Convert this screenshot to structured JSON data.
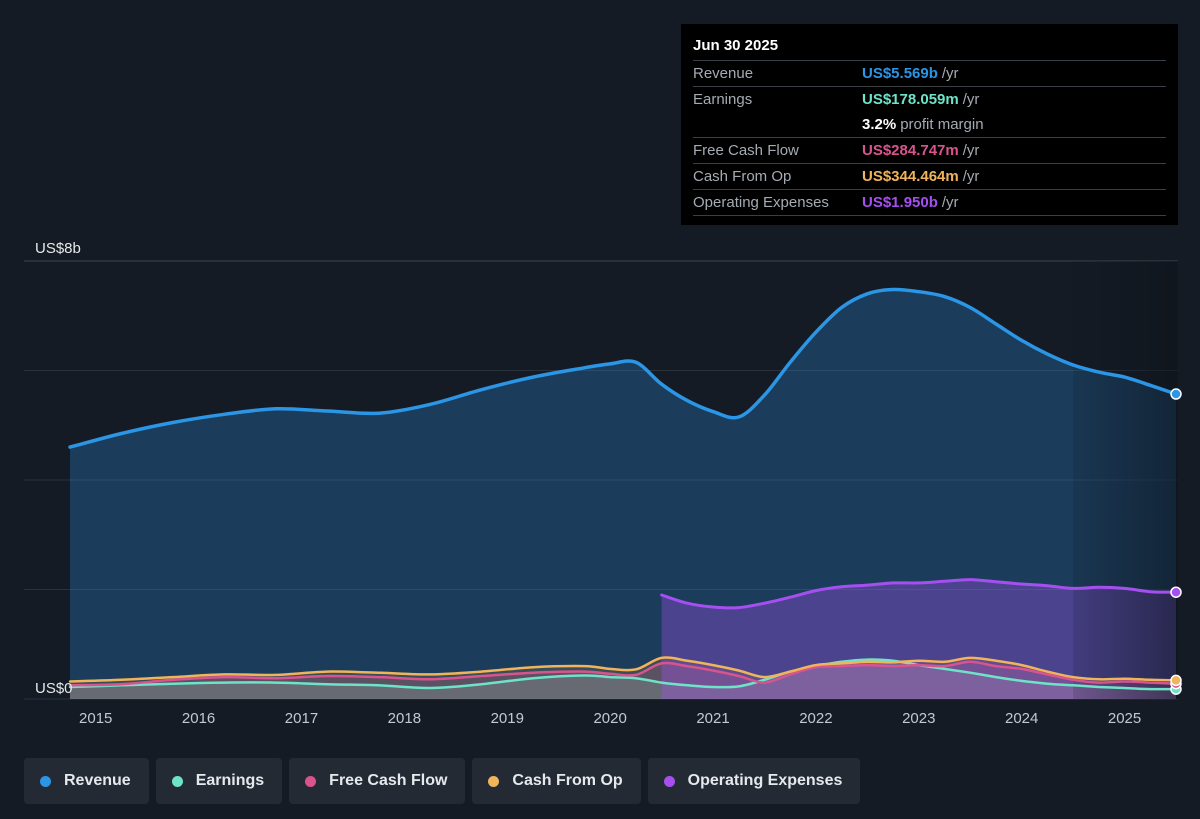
{
  "tooltip": {
    "date": "Jun 30 2025",
    "rows": [
      {
        "label": "Revenue",
        "value": "US$5.569b",
        "unit": "/yr",
        "color": "#2b95e6"
      },
      {
        "label": "Earnings",
        "value": "US$178.059m",
        "unit": "/yr",
        "color": "#6de3c8"
      },
      {
        "label": "",
        "value": "3.2%",
        "unit": "profit margin",
        "color": "#ffffff"
      },
      {
        "label": "Free Cash Flow",
        "value": "US$284.747m",
        "unit": "/yr",
        "color": "#d9548f"
      },
      {
        "label": "Cash From Op",
        "value": "US$344.464m",
        "unit": "/yr",
        "color": "#f0b45a"
      },
      {
        "label": "Operating Expenses",
        "value": "US$1.950b",
        "unit": "/yr",
        "color": "#a64ff0"
      }
    ]
  },
  "legend": [
    {
      "label": "Revenue",
      "color": "#2b95e6"
    },
    {
      "label": "Earnings",
      "color": "#6de3c8"
    },
    {
      "label": "Free Cash Flow",
      "color": "#d9548f"
    },
    {
      "label": "Cash From Op",
      "color": "#f0b45a"
    },
    {
      "label": "Operating Expenses",
      "color": "#a64ff0"
    }
  ],
  "chart_data": {
    "type": "area",
    "y_unit": "US$ billions",
    "ylim": [
      0,
      8
    ],
    "y_tick_labels": [
      {
        "value": 8,
        "label": "US$8b"
      },
      {
        "value": 0,
        "label": "US$0"
      }
    ],
    "gridlines": [
      0,
      2,
      4,
      6,
      8
    ],
    "xlim": [
      2014.5,
      2025.5
    ],
    "x_ticks": [
      2015,
      2016,
      2017,
      2018,
      2019,
      2020,
      2021,
      2022,
      2023,
      2024,
      2025
    ],
    "highlight_from": 2024.5,
    "series": [
      {
        "name": "Revenue",
        "color": "#2b95e6",
        "points": [
          [
            2014.75,
            4.6
          ],
          [
            2015.25,
            4.85
          ],
          [
            2015.75,
            5.05
          ],
          [
            2016.25,
            5.2
          ],
          [
            2016.75,
            5.3
          ],
          [
            2017.25,
            5.26
          ],
          [
            2017.75,
            5.22
          ],
          [
            2018.25,
            5.38
          ],
          [
            2018.75,
            5.65
          ],
          [
            2019.25,
            5.88
          ],
          [
            2019.75,
            6.05
          ],
          [
            2020.0,
            6.12
          ],
          [
            2020.25,
            6.15
          ],
          [
            2020.5,
            5.75
          ],
          [
            2020.75,
            5.45
          ],
          [
            2021.0,
            5.25
          ],
          [
            2021.25,
            5.15
          ],
          [
            2021.5,
            5.55
          ],
          [
            2021.75,
            6.15
          ],
          [
            2022.0,
            6.7
          ],
          [
            2022.25,
            7.15
          ],
          [
            2022.5,
            7.4
          ],
          [
            2022.75,
            7.48
          ],
          [
            2023.0,
            7.44
          ],
          [
            2023.25,
            7.35
          ],
          [
            2023.5,
            7.15
          ],
          [
            2023.75,
            6.85
          ],
          [
            2024.0,
            6.55
          ],
          [
            2024.25,
            6.3
          ],
          [
            2024.5,
            6.1
          ],
          [
            2024.75,
            5.97
          ],
          [
            2025.0,
            5.88
          ],
          [
            2025.25,
            5.73
          ],
          [
            2025.5,
            5.57
          ]
        ]
      },
      {
        "name": "Earnings",
        "color": "#6de3c8",
        "points": [
          [
            2014.75,
            0.22
          ],
          [
            2015.25,
            0.25
          ],
          [
            2015.75,
            0.28
          ],
          [
            2016.25,
            0.3
          ],
          [
            2016.75,
            0.3
          ],
          [
            2017.25,
            0.27
          ],
          [
            2017.75,
            0.25
          ],
          [
            2018.25,
            0.2
          ],
          [
            2018.75,
            0.27
          ],
          [
            2019.25,
            0.38
          ],
          [
            2019.75,
            0.43
          ],
          [
            2020.0,
            0.4
          ],
          [
            2020.25,
            0.38
          ],
          [
            2020.5,
            0.3
          ],
          [
            2020.75,
            0.25
          ],
          [
            2021.0,
            0.22
          ],
          [
            2021.25,
            0.23
          ],
          [
            2021.5,
            0.35
          ],
          [
            2021.75,
            0.5
          ],
          [
            2022.0,
            0.6
          ],
          [
            2022.25,
            0.68
          ],
          [
            2022.5,
            0.72
          ],
          [
            2022.75,
            0.7
          ],
          [
            2023.0,
            0.62
          ],
          [
            2023.25,
            0.55
          ],
          [
            2023.5,
            0.48
          ],
          [
            2023.75,
            0.4
          ],
          [
            2024.0,
            0.33
          ],
          [
            2024.25,
            0.28
          ],
          [
            2024.5,
            0.25
          ],
          [
            2024.75,
            0.22
          ],
          [
            2025.0,
            0.2
          ],
          [
            2025.25,
            0.18
          ],
          [
            2025.5,
            0.18
          ]
        ]
      },
      {
        "name": "Free Cash Flow",
        "color": "#d9548f",
        "points": [
          [
            2014.75,
            0.25
          ],
          [
            2015.25,
            0.27
          ],
          [
            2015.75,
            0.35
          ],
          [
            2016.25,
            0.4
          ],
          [
            2016.75,
            0.38
          ],
          [
            2017.25,
            0.42
          ],
          [
            2017.75,
            0.4
          ],
          [
            2018.25,
            0.36
          ],
          [
            2018.75,
            0.42
          ],
          [
            2019.25,
            0.48
          ],
          [
            2019.75,
            0.5
          ],
          [
            2020.0,
            0.46
          ],
          [
            2020.25,
            0.44
          ],
          [
            2020.5,
            0.65
          ],
          [
            2020.75,
            0.6
          ],
          [
            2021.0,
            0.52
          ],
          [
            2021.25,
            0.42
          ],
          [
            2021.5,
            0.3
          ],
          [
            2021.75,
            0.45
          ],
          [
            2022.0,
            0.58
          ],
          [
            2022.25,
            0.6
          ],
          [
            2022.5,
            0.62
          ],
          [
            2022.75,
            0.6
          ],
          [
            2023.0,
            0.62
          ],
          [
            2023.25,
            0.6
          ],
          [
            2023.5,
            0.68
          ],
          [
            2023.75,
            0.6
          ],
          [
            2024.0,
            0.55
          ],
          [
            2024.25,
            0.45
          ],
          [
            2024.5,
            0.35
          ],
          [
            2024.75,
            0.3
          ],
          [
            2025.0,
            0.32
          ],
          [
            2025.25,
            0.3
          ],
          [
            2025.5,
            0.28
          ]
        ]
      },
      {
        "name": "Cash From Op",
        "color": "#f0b45a",
        "points": [
          [
            2014.75,
            0.32
          ],
          [
            2015.25,
            0.35
          ],
          [
            2015.75,
            0.4
          ],
          [
            2016.25,
            0.45
          ],
          [
            2016.75,
            0.44
          ],
          [
            2017.25,
            0.5
          ],
          [
            2017.75,
            0.48
          ],
          [
            2018.25,
            0.45
          ],
          [
            2018.75,
            0.5
          ],
          [
            2019.25,
            0.58
          ],
          [
            2019.75,
            0.6
          ],
          [
            2020.0,
            0.55
          ],
          [
            2020.25,
            0.54
          ],
          [
            2020.5,
            0.75
          ],
          [
            2020.75,
            0.7
          ],
          [
            2021.0,
            0.62
          ],
          [
            2021.25,
            0.52
          ],
          [
            2021.5,
            0.4
          ],
          [
            2021.75,
            0.5
          ],
          [
            2022.0,
            0.62
          ],
          [
            2022.25,
            0.65
          ],
          [
            2022.5,
            0.68
          ],
          [
            2022.75,
            0.67
          ],
          [
            2023.0,
            0.7
          ],
          [
            2023.25,
            0.68
          ],
          [
            2023.5,
            0.75
          ],
          [
            2023.75,
            0.7
          ],
          [
            2024.0,
            0.62
          ],
          [
            2024.25,
            0.5
          ],
          [
            2024.5,
            0.4
          ],
          [
            2024.75,
            0.36
          ],
          [
            2025.0,
            0.37
          ],
          [
            2025.25,
            0.35
          ],
          [
            2025.5,
            0.34
          ]
        ]
      },
      {
        "name": "Operating Expenses",
        "color": "#a64ff0",
        "points": [
          [
            2020.5,
            1.9
          ],
          [
            2020.75,
            1.75
          ],
          [
            2021.0,
            1.68
          ],
          [
            2021.25,
            1.67
          ],
          [
            2021.5,
            1.75
          ],
          [
            2021.75,
            1.86
          ],
          [
            2022.0,
            1.98
          ],
          [
            2022.25,
            2.05
          ],
          [
            2022.5,
            2.08
          ],
          [
            2022.75,
            2.12
          ],
          [
            2023.0,
            2.12
          ],
          [
            2023.25,
            2.15
          ],
          [
            2023.5,
            2.18
          ],
          [
            2023.75,
            2.14
          ],
          [
            2024.0,
            2.1
          ],
          [
            2024.25,
            2.07
          ],
          [
            2024.5,
            2.02
          ],
          [
            2024.75,
            2.04
          ],
          [
            2025.0,
            2.02
          ],
          [
            2025.25,
            1.96
          ],
          [
            2025.5,
            1.95
          ]
        ]
      }
    ]
  }
}
